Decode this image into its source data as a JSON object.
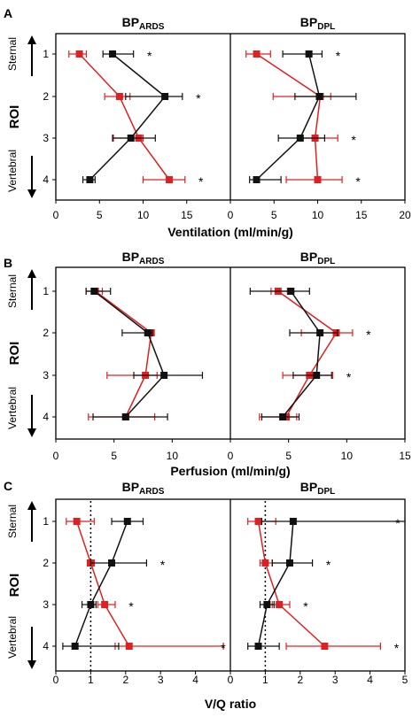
{
  "colors": {
    "ards": "#e02020",
    "dpl": "#111111",
    "axis": "#000000",
    "refline": "#000000"
  },
  "left_labels": {
    "sternal": "Sternal",
    "roi": "ROI",
    "vertebral": "Vertebral"
  },
  "chart_data": [
    {
      "panel": "A",
      "type": "scatter",
      "xlabel": "Ventilation (ml/min/g)",
      "ylabel": "ROI",
      "categories": [
        "1",
        "2",
        "3",
        "4"
      ],
      "xlim": [
        0,
        20
      ],
      "x_ticks": [
        "0",
        "5",
        "10",
        "15",
        "0",
        "5",
        "10",
        "15",
        "20"
      ],
      "subplots": [
        {
          "title_base": "BP",
          "title_sub": "ARDS",
          "series": [
            {
              "color": "red",
              "values": [
                2.7,
                7.3,
                9.5,
                13.0
              ],
              "err_low": [
                1.2,
                1.7,
                2.9,
                3.0
              ],
              "err_high": [
                0.8,
                1.2,
                0.5,
                1.8
              ]
            },
            {
              "color": "black",
              "values": [
                6.5,
                12.5,
                8.6,
                3.9
              ],
              "err_low": [
                1.1,
                4.5,
                2.1,
                0.8
              ],
              "err_high": [
                2.4,
                2.0,
                2.8,
                0.6
              ]
            }
          ],
          "annotations": [
            "*",
            "*",
            "",
            "*"
          ]
        },
        {
          "title_base": "BP",
          "title_sub": "DPL",
          "series": [
            {
              "color": "red",
              "values": [
                3.0,
                10.3,
                9.7,
                10.0
              ],
              "err_low": [
                1.2,
                5.4,
                1.7,
                3.6
              ],
              "err_high": [
                1.6,
                1.2,
                2.6,
                2.8
              ]
            },
            {
              "color": "black",
              "values": [
                9.0,
                10.2,
                8.0,
                3.0
              ],
              "err_low": [
                3.0,
                2.8,
                2.5,
                0.8
              ],
              "err_high": [
                1.5,
                4.2,
                2.8,
                2.8
              ]
            }
          ],
          "annotations": [
            "*",
            "",
            "*",
            "*"
          ]
        }
      ]
    },
    {
      "panel": "B",
      "type": "scatter",
      "xlabel": "Perfusion (ml/min/g)",
      "ylabel": "ROI",
      "categories": [
        "1",
        "2",
        "3",
        "4"
      ],
      "xlim": [
        0,
        15
      ],
      "x_ticks": [
        "0",
        "5",
        "10",
        "0",
        "5",
        "10",
        "15"
      ],
      "subplots": [
        {
          "title_base": "BP",
          "title_sub": "ARDS",
          "series": [
            {
              "color": "red",
              "values": [
                3.4,
                8.2,
                7.7,
                6.0
              ],
              "err_low": [
                0.8,
                0.3,
                3.3,
                3.2
              ],
              "err_high": [
                0.6,
                0.2,
                1.0,
                2.5
              ]
            },
            {
              "color": "black",
              "values": [
                3.3,
                7.9,
                9.3,
                6.0
              ],
              "err_low": [
                0.7,
                2.2,
                2.6,
                2.8
              ],
              "err_high": [
                1.4,
                0.4,
                3.3,
                3.6
              ]
            }
          ],
          "annotations": [
            "",
            "",
            "",
            ""
          ]
        },
        {
          "title_base": "BP",
          "title_sub": "DPL",
          "series": [
            {
              "color": "red",
              "values": [
                4.1,
                9.1,
                6.8,
                4.8
              ],
              "err_low": [
                0.6,
                3.0,
                2.3,
                2.3
              ],
              "err_high": [
                0.8,
                1.4,
                2.0,
                0.9
              ]
            },
            {
              "color": "black",
              "values": [
                5.2,
                7.7,
                7.4,
                4.5
              ],
              "err_low": [
                3.5,
                2.6,
                2.0,
                1.8
              ],
              "err_high": [
                1.6,
                1.5,
                1.3,
                1.4
              ]
            }
          ],
          "annotations": [
            "",
            "*",
            "*",
            ""
          ]
        }
      ]
    },
    {
      "panel": "C",
      "type": "scatter",
      "xlabel": "V/Q ratio",
      "ylabel": "ROI",
      "categories": [
        "1",
        "2",
        "3",
        "4"
      ],
      "xlim": [
        0,
        5
      ],
      "x_ticks": [
        "0",
        "1",
        "2",
        "3",
        "4",
        "0",
        "1",
        "2",
        "3",
        "4",
        "5"
      ],
      "reference_line_x": 1,
      "subplots": [
        {
          "title_base": "BP",
          "title_sub": "ARDS",
          "series": [
            {
              "color": "red",
              "values": [
                0.6,
                1.0,
                1.4,
                2.1
              ],
              "err_low": [
                0.3,
                0.1,
                0.2,
                0.4
              ],
              "err_high": [
                0.5,
                0.1,
                0.3,
                2.7
              ]
            },
            {
              "color": "black",
              "values": [
                2.05,
                1.6,
                1.0,
                0.55
              ],
              "err_low": [
                0.45,
                0.6,
                0.25,
                0.35
              ],
              "err_high": [
                0.45,
                1.0,
                0.15,
                1.25
              ]
            }
          ],
          "annotations": [
            "",
            "*",
            "*",
            "*"
          ]
        },
        {
          "title_base": "BP",
          "title_sub": "DPL",
          "series": [
            {
              "color": "red",
              "values": [
                0.8,
                1.0,
                1.4,
                2.7
              ],
              "err_low": [
                0.3,
                0.15,
                0.2,
                1.1
              ],
              "err_high": [
                0.5,
                0.2,
                0.3,
                1.6
              ]
            },
            {
              "color": "black",
              "values": [
                1.8,
                1.7,
                1.05,
                0.8
              ],
              "err_low": [
                0.9,
                0.5,
                0.2,
                0.3
              ],
              "err_high": [
                3.2,
                0.65,
                0.2,
                0.6
              ]
            }
          ],
          "annotations": [
            "*",
            "*",
            "*",
            "*"
          ]
        }
      ]
    }
  ]
}
